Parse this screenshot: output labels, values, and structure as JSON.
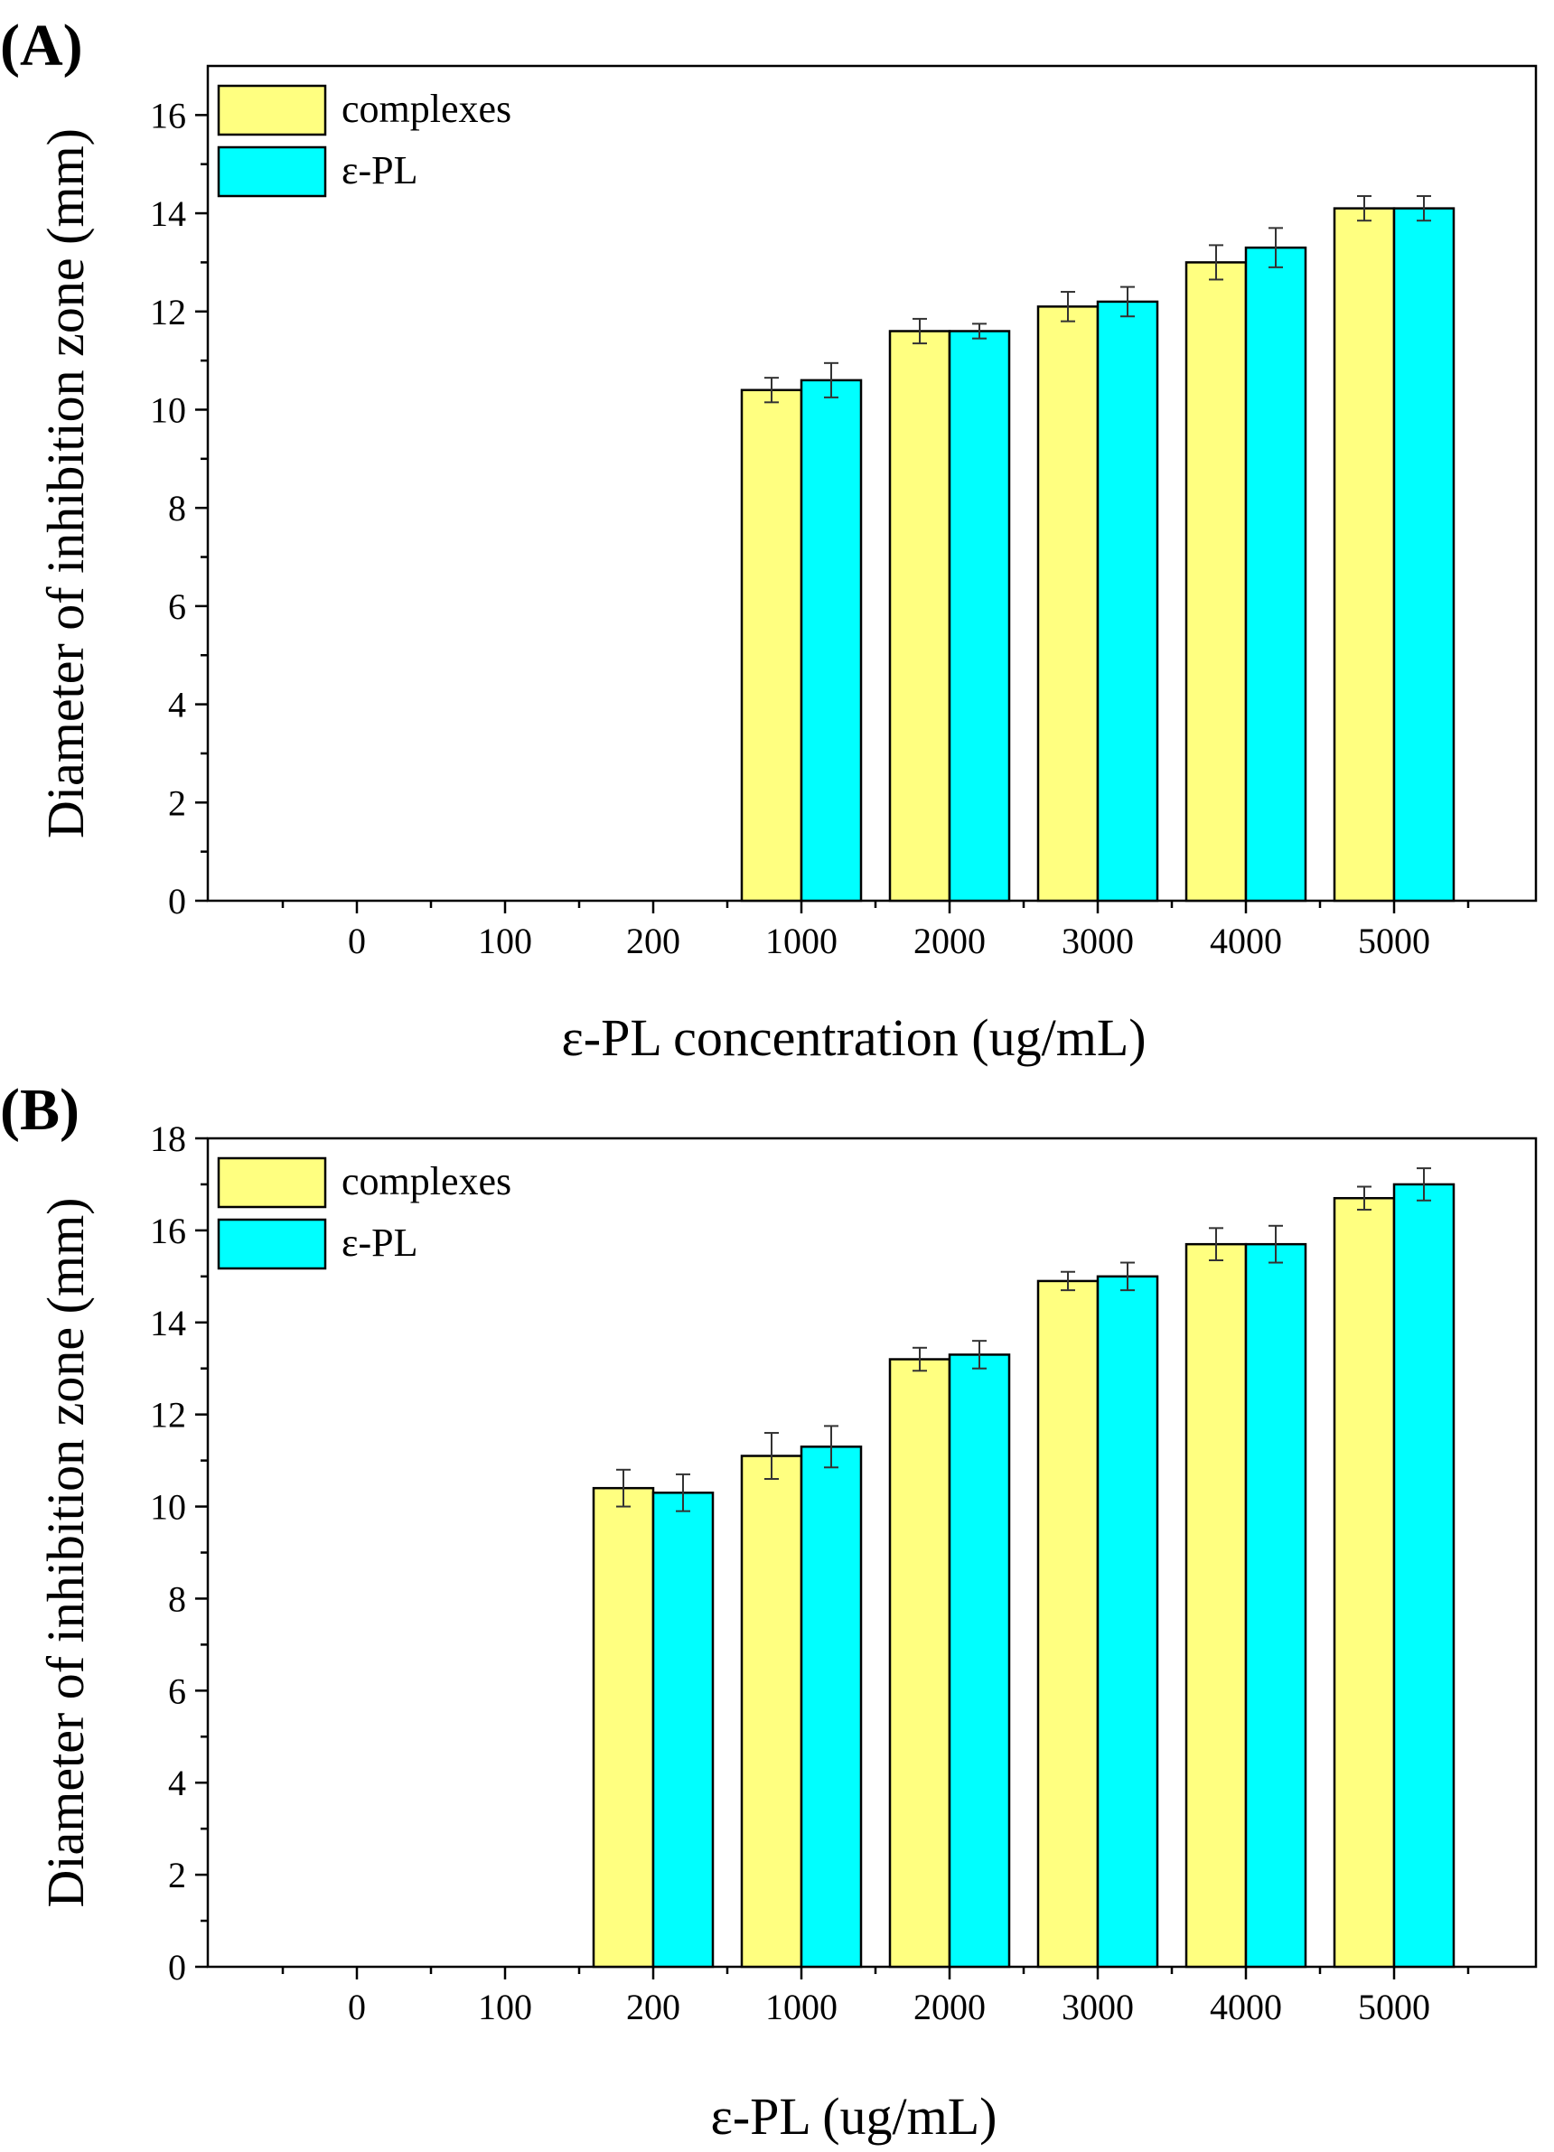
{
  "chart_data": [
    {
      "type": "bar",
      "panel_label": "(A)",
      "categories": [
        "0",
        "100",
        "200",
        "1000",
        "2000",
        "3000",
        "4000",
        "5000"
      ],
      "series": [
        {
          "name": "complexes",
          "color": "#FFFF80",
          "values": [
            0,
            0,
            0,
            10.4,
            11.6,
            12.1,
            13.0,
            14.1
          ],
          "errors": [
            0,
            0,
            0,
            0.25,
            0.25,
            0.3,
            0.35,
            0.25
          ]
        },
        {
          "name": "ε-PL",
          "color": "#00FFFF",
          "values": [
            0,
            0,
            0,
            10.6,
            11.6,
            12.2,
            13.3,
            14.1
          ],
          "errors": [
            0,
            0,
            0,
            0.35,
            0.15,
            0.3,
            0.4,
            0.25
          ]
        }
      ],
      "xlabel": "ε-PL concentration (ug/mL)",
      "ylabel": "Diameter of inhibition zone (mm)",
      "ylim": [
        0,
        17
      ],
      "yticks": [
        0,
        2,
        4,
        6,
        8,
        10,
        12,
        14,
        16
      ],
      "legend": "top-left",
      "grid": false
    },
    {
      "type": "bar",
      "panel_label": "(B)",
      "categories": [
        "0",
        "100",
        "200",
        "1000",
        "2000",
        "3000",
        "4000",
        "5000"
      ],
      "series": [
        {
          "name": "complexes",
          "color": "#FFFF80",
          "values": [
            0,
            0,
            10.4,
            11.1,
            13.2,
            14.9,
            15.7,
            16.7
          ],
          "errors": [
            0,
            0,
            0.4,
            0.5,
            0.25,
            0.2,
            0.35,
            0.25
          ]
        },
        {
          "name": "ε-PL",
          "color": "#00FFFF",
          "values": [
            0,
            0,
            10.3,
            11.3,
            13.3,
            15.0,
            15.7,
            17.0
          ],
          "errors": [
            0,
            0,
            0.4,
            0.45,
            0.3,
            0.3,
            0.4,
            0.35
          ]
        }
      ],
      "xlabel": "ε-PL (ug/mL)",
      "ylabel": "Diameter of inhibition zone (mm)",
      "ylim": [
        0,
        18
      ],
      "yticks": [
        0,
        2,
        4,
        6,
        8,
        10,
        12,
        14,
        16,
        18
      ],
      "legend": "top-left",
      "grid": false
    }
  ]
}
